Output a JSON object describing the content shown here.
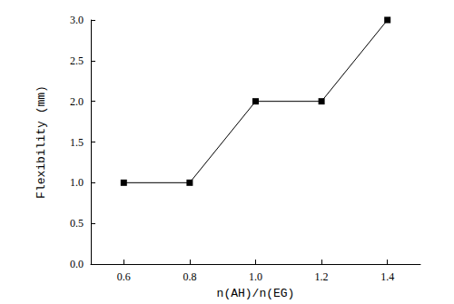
{
  "chart_data": {
    "type": "line",
    "categories": [
      "0.6",
      "0.8",
      "1.0",
      "1.2",
      "1.4"
    ],
    "values": [
      1,
      1,
      2,
      2,
      3
    ],
    "color": "#000000",
    "marker": "square",
    "x_label": "n(AH)/n(EG)",
    "y_label": "Flexibility (mm)",
    "ylim": [
      0,
      3
    ],
    "yticks": [
      {
        "value": 0,
        "label": "0.0"
      },
      {
        "value": 0.5,
        "label": "0.5"
      },
      {
        "value": 1,
        "label": "1.0"
      },
      {
        "value": 1.5,
        "label": "1.5"
      },
      {
        "value": 2,
        "label": "2.0"
      },
      {
        "value": 2.5,
        "label": "2.5"
      },
      {
        "value": 3,
        "label": "3.0"
      }
    ],
    "grid": false
  }
}
